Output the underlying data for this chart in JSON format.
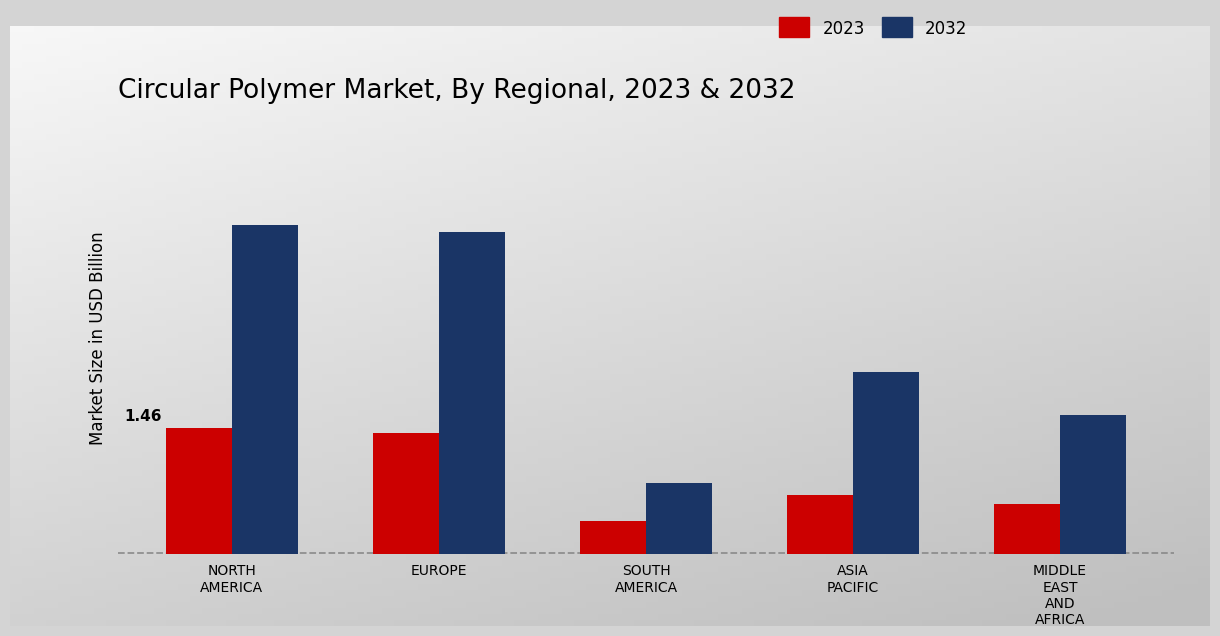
{
  "title": "Circular Polymer Market, By Regional, 2023 & 2032",
  "ylabel": "Market Size in USD Billion",
  "categories": [
    "NORTH\nAMERICA",
    "EUROPE",
    "SOUTH\nAMERICA",
    "ASIA\nPACIFIC",
    "MIDDLE\nEAST\nAND\nAFRICA"
  ],
  "values_2023": [
    1.46,
    1.4,
    0.38,
    0.68,
    0.58
  ],
  "values_2032": [
    3.8,
    3.72,
    0.82,
    2.1,
    1.6
  ],
  "color_2023": "#cc0000",
  "color_2032": "#1a3566",
  "bar_width": 0.32,
  "annotation_value": "1.46",
  "background_color_top": "#e8e8e8",
  "background_color_bottom": "#c8c8c8",
  "legend_labels": [
    "2023",
    "2032"
  ],
  "title_fontsize": 19,
  "axis_label_fontsize": 12,
  "tick_fontsize": 10,
  "legend_fontsize": 12,
  "ylim": [
    0,
    5.0
  ],
  "dpi": 100
}
